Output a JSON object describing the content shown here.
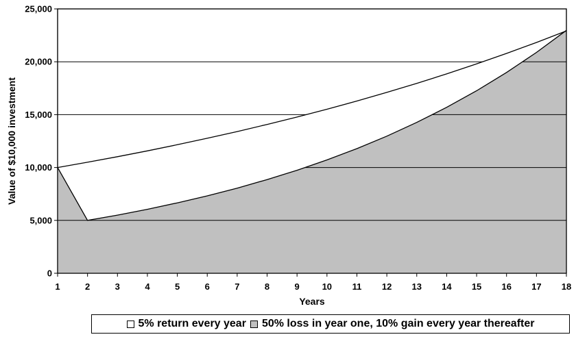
{
  "chart_data": {
    "type": "area",
    "xlabel": "Years",
    "ylabel": "Value of $10,000 investment",
    "x": [
      1,
      2,
      3,
      4,
      5,
      6,
      7,
      8,
      9,
      10,
      11,
      12,
      13,
      14,
      15,
      16,
      17,
      18
    ],
    "xlim": [
      1,
      18
    ],
    "ylim": [
      0,
      25000
    ],
    "y_ticks": [
      0,
      5000,
      10000,
      15000,
      20000,
      25000
    ],
    "y_tick_labels": [
      "0",
      "5,000",
      "10,000",
      "15,000",
      "20,000",
      "25,000"
    ],
    "gridlines": "horizontal",
    "legend_position": "bottom",
    "series": [
      {
        "name": "5% return every year",
        "color": "#ffffff",
        "values": [
          10000,
          10500,
          11025,
          11576,
          12155,
          12763,
          13401,
          14071,
          14775,
          15513,
          16289,
          17103,
          17959,
          18856,
          19799,
          20789,
          21829,
          22920
        ]
      },
      {
        "name": "50% loss in year one, 10% gain every year thereafter",
        "color": "#c0c0c0",
        "values": [
          10000,
          5000,
          5500,
          6050,
          6655,
          7321,
          8053,
          8858,
          9744,
          10718,
          11790,
          12969,
          14266,
          15692,
          17261,
          18987,
          20886,
          22975
        ]
      }
    ]
  }
}
